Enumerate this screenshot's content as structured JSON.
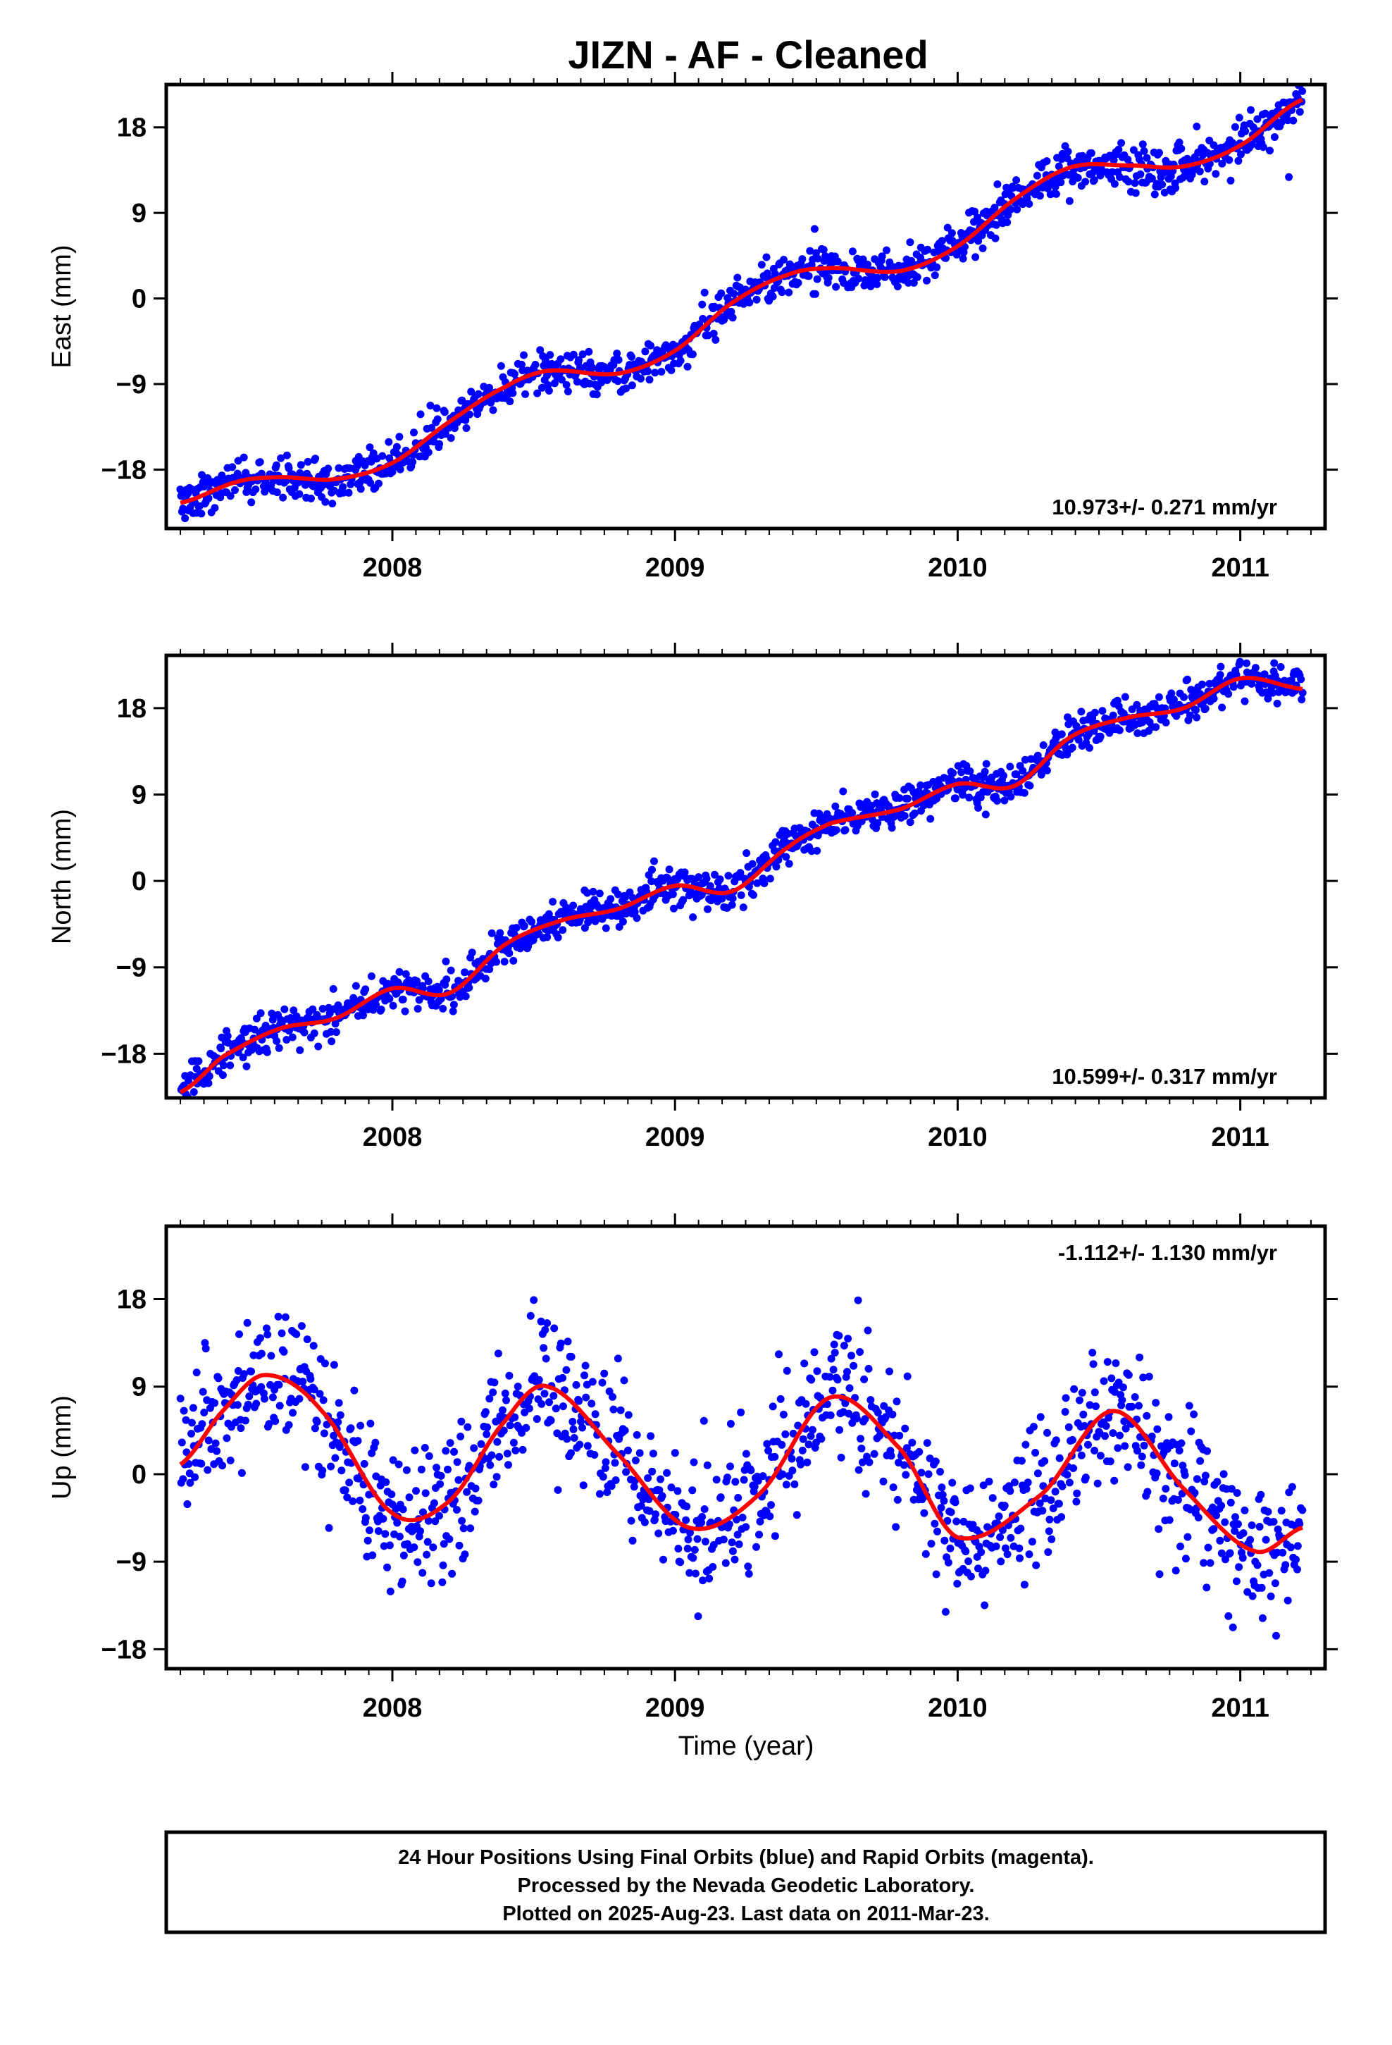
{
  "title": "JIZN  - AF - Cleaned",
  "x_axis_label": "Time (year)",
  "footer": {
    "lines": [
      "24 Hour Positions Using Final Orbits (blue) and Rapid Orbits (magenta).",
      "Processed by the Nevada Geodetic Laboratory.",
      "Plotted on 2025-Aug-23. Last data on 2011-Mar-23."
    ]
  },
  "colors": {
    "data_points": "#0000ff",
    "model_curve": "#ff0000",
    "frame": "#000000"
  },
  "chart_data": [
    {
      "type": "scatter",
      "name": "east",
      "ylabel": "East (mm)",
      "rate_label": "10.973+/- 0.271 mm/yr",
      "rate_position": "bottom-right",
      "xlim": [
        2007.2,
        2011.3
      ],
      "ylim": [
        -24.2,
        22.5
      ],
      "x_ticks": [
        2008,
        2009,
        2010,
        2011
      ],
      "x_tick_labels": [
        "2008",
        "2009",
        "2010",
        "2011"
      ],
      "y_ticks": [
        -18,
        -9,
        0,
        9,
        18
      ],
      "y_tick_labels": [
        "−18",
        "−9",
        "0",
        "9",
        "18"
      ],
      "model_x": [
        2007.25,
        2007.45,
        2007.6,
        2007.8,
        2008.0,
        2008.2,
        2008.4,
        2008.55,
        2008.8,
        2009.0,
        2009.2,
        2009.4,
        2009.55,
        2009.8,
        2010.0,
        2010.2,
        2010.4,
        2010.6,
        2010.8,
        2011.0,
        2011.22
      ],
      "model_y": [
        -21.5,
        -19.3,
        -18.8,
        -19.0,
        -17.3,
        -13.0,
        -9.3,
        -7.6,
        -7.9,
        -5.5,
        -0.5,
        2.5,
        3.2,
        2.9,
        5.5,
        10.4,
        13.8,
        14.0,
        13.9,
        16.1,
        20.9
      ],
      "scatter_sigma": 1.1,
      "point_count": 1240,
      "seed": 11
    },
    {
      "type": "scatter",
      "name": "north",
      "ylabel": "North (mm)",
      "rate_label": "10.599+/- 0.317 mm/yr",
      "rate_position": "bottom-right",
      "xlim": [
        2007.2,
        2011.3
      ],
      "ylim": [
        -22.6,
        23.5
      ],
      "x_ticks": [
        2008,
        2009,
        2010,
        2011
      ],
      "x_tick_labels": [
        "2008",
        "2009",
        "2010",
        "2011"
      ],
      "y_ticks": [
        -18,
        -9,
        0,
        9,
        18
      ],
      "y_tick_labels": [
        "−18",
        "−9",
        "0",
        "9",
        "18"
      ],
      "model_x": [
        2007.25,
        2007.4,
        2007.6,
        2007.8,
        2008.0,
        2008.2,
        2008.4,
        2008.6,
        2008.8,
        2009.0,
        2009.2,
        2009.4,
        2009.55,
        2009.8,
        2010.0,
        2010.2,
        2010.4,
        2010.6,
        2010.8,
        2011.0,
        2011.22
      ],
      "model_y": [
        -22.0,
        -18.3,
        -15.4,
        -14.3,
        -11.2,
        -11.7,
        -6.6,
        -4.1,
        -2.9,
        -0.5,
        -1.1,
        3.5,
        6.0,
        7.5,
        10.1,
        9.9,
        15.0,
        17.0,
        18.0,
        21.1,
        20.0
      ],
      "scatter_sigma": 1.0,
      "point_count": 1240,
      "seed": 23
    },
    {
      "type": "scatter",
      "name": "up",
      "ylabel": "Up (mm)",
      "rate_label": "-1.112+/- 1.130 mm/yr",
      "rate_position": "top-right",
      "xlim": [
        2007.2,
        2011.3
      ],
      "ylim": [
        -20.0,
        25.5
      ],
      "x_ticks": [
        2008,
        2009,
        2010,
        2011
      ],
      "x_tick_labels": [
        "2008",
        "2009",
        "2010",
        "2011"
      ],
      "y_ticks": [
        -18,
        -9,
        0,
        9,
        18
      ],
      "y_tick_labels": [
        "−18",
        "−9",
        "0",
        "9",
        "18"
      ],
      "model_x": [
        2007.25,
        2007.4,
        2007.55,
        2007.75,
        2008.0,
        2008.2,
        2008.4,
        2008.55,
        2008.8,
        2009.05,
        2009.3,
        2009.55,
        2009.8,
        2010.0,
        2010.3,
        2010.55,
        2010.8,
        2011.05,
        2011.22
      ],
      "model_y": [
        1.0,
        6.5,
        10.2,
        6.5,
        -4.0,
        -2.8,
        5.5,
        9.0,
        2.0,
        -5.5,
        -2.0,
        7.9,
        2.5,
        -6.5,
        -2.0,
        6.5,
        -1.5,
        -7.9,
        -5.5
      ],
      "scatter_sigma": 3.6,
      "point_count": 1240,
      "seed": 37
    }
  ]
}
